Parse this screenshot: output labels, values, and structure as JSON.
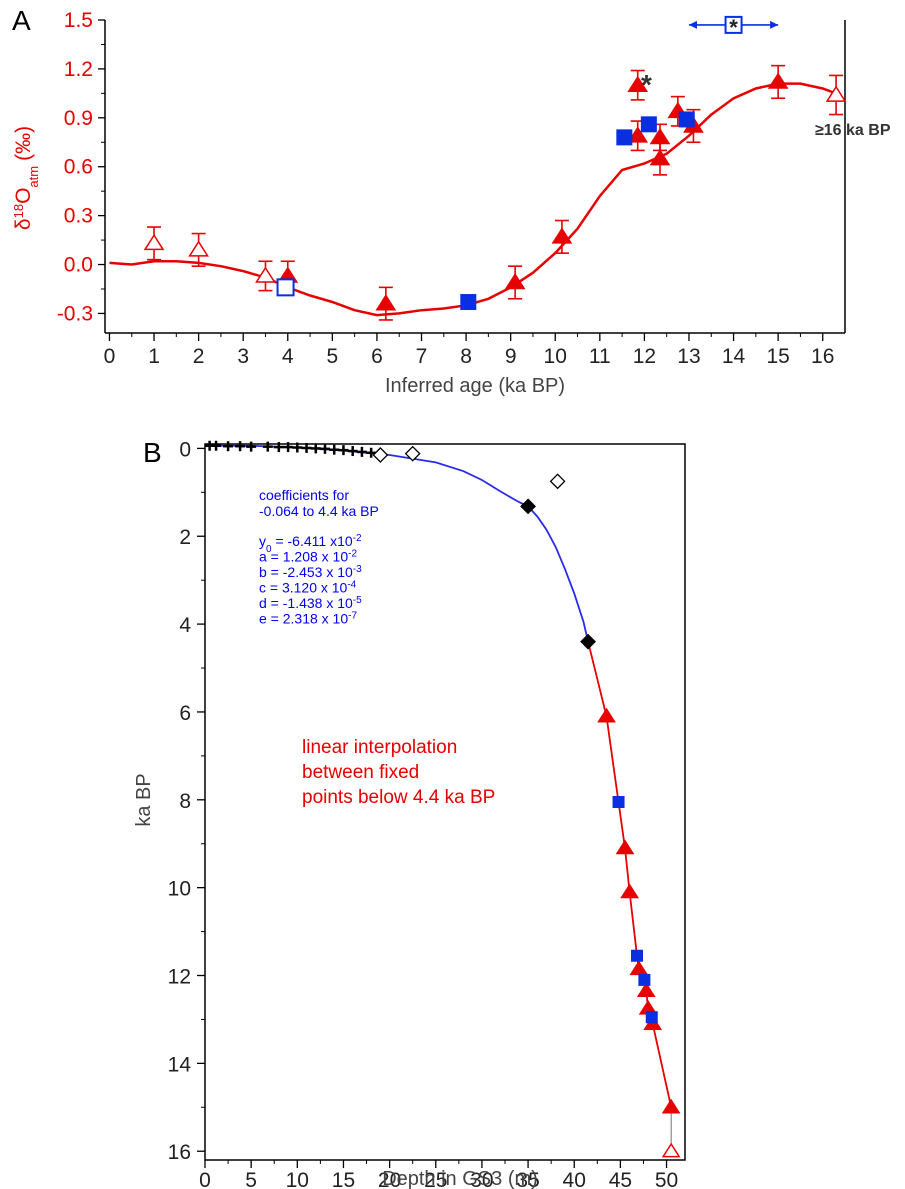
{
  "panel_a": {
    "letter": "A",
    "ylabel_main": "δ",
    "ylabel_sup": "18",
    "ylabel_o": "O",
    "ylabel_sub": "atm",
    "ylabel_unit": "(‰)",
    "asterisk": "*",
    "annotation": "≥16 ka BP"
  },
  "panel_b": {
    "letter": "B",
    "coef_title_1": "coefficients for",
    "coef_title_2": "-0.064 to 4.4 ka BP",
    "coefficients": [
      {
        "pre": "y",
        "sub": "0",
        "mid": " = -6.411 x10",
        "sup": "-2"
      },
      {
        "pre": "a = 1.208 x 10",
        "sub": "",
        "mid": "",
        "sup": "-2"
      },
      {
        "pre": "b = -2.453 x 10",
        "sub": "",
        "mid": "",
        "sup": "-3"
      },
      {
        "pre": "c =  3.120 x 10",
        "sub": "",
        "mid": "",
        "sup": "-4"
      },
      {
        "pre": "d = -1.438 x 10",
        "sub": "",
        "mid": "",
        "sup": "-5"
      },
      {
        "pre": "e =  2.318 x 10",
        "sub": "",
        "mid": "",
        "sup": "-7"
      }
    ],
    "interp_lines": [
      "linear interpolation",
      "between fixed",
      "points below 4.4 ka BP"
    ]
  },
  "colors": {
    "red": "#e60000",
    "blue": "#0a2fe0",
    "fit_blue": "#2a2aee",
    "black": "#000000"
  },
  "chart_data": [
    {
      "type": "scatter",
      "xlabel": "Inferred age (ka BP)",
      "ylabel": "δ18Oatm (‰)",
      "xlim": [
        -0.1,
        16.5
      ],
      "ylim": [
        -0.42,
        1.5
      ],
      "xticks": [
        0,
        1,
        2,
        3,
        4,
        5,
        6,
        7,
        8,
        9,
        10,
        11,
        12,
        13,
        14,
        15,
        16
      ],
      "yticks": [
        -0.3,
        0.0,
        0.3,
        0.6,
        0.9,
        1.2,
        1.5
      ],
      "ytick_labels": [
        "-0.3",
        "0.0",
        "0.3",
        "0.6",
        "0.9",
        "1.2",
        "1.5"
      ],
      "series": [
        {
          "marker": "triangle-filled",
          "points": [
            {
              "x": 4.0,
              "y": -0.07,
              "err": 0.09
            },
            {
              "x": 6.2,
              "y": -0.24,
              "err": 0.1
            },
            {
              "x": 9.1,
              "y": -0.11,
              "err": 0.1
            },
            {
              "x": 10.15,
              "y": 0.17,
              "err": 0.1
            },
            {
              "x": 11.85,
              "y": 0.79,
              "err": 0.09
            },
            {
              "x": 11.85,
              "y": 1.1,
              "err": 0.09
            },
            {
              "x": 12.35,
              "y": 0.78,
              "err": 0.08
            },
            {
              "x": 12.35,
              "y": 0.65,
              "err": 0.1
            },
            {
              "x": 12.75,
              "y": 0.94,
              "err": 0.09
            },
            {
              "x": 13.1,
              "y": 0.85,
              "err": 0.1
            },
            {
              "x": 15.0,
              "y": 1.12,
              "err": 0.1
            }
          ]
        },
        {
          "marker": "triangle-open",
          "points": [
            {
              "x": 1.0,
              "y": 0.13,
              "err": 0.1
            },
            {
              "x": 2.0,
              "y": 0.09,
              "err": 0.1
            },
            {
              "x": 3.5,
              "y": -0.07,
              "err": 0.09
            },
            {
              "x": 16.3,
              "y": 1.04,
              "err": 0.12
            }
          ]
        },
        {
          "marker": "square-filled",
          "points": [
            {
              "x": 8.05,
              "y": -0.23
            },
            {
              "x": 11.55,
              "y": 0.78
            },
            {
              "x": 12.1,
              "y": 0.86
            },
            {
              "x": 12.95,
              "y": 0.89
            }
          ]
        },
        {
          "marker": "square-open",
          "points": [
            {
              "x": 3.95,
              "y": -0.14
            }
          ]
        },
        {
          "marker": "square-open-star",
          "points": [
            {
              "x": 14.0,
              "y": 1.47,
              "xerr": 1.0
            }
          ]
        },
        {
          "marker": "fit-curve",
          "x": [
            0,
            0.5,
            1,
            1.5,
            2,
            2.5,
            3,
            3.5,
            4,
            4.5,
            5,
            5.5,
            6,
            6.5,
            7,
            7.5,
            8,
            8.5,
            9,
            9.5,
            10,
            10.5,
            11,
            11.5,
            12,
            12.5,
            13,
            13.5,
            14,
            14.5,
            15,
            15.5,
            16,
            16.3
          ],
          "y": [
            0.01,
            0.0,
            0.02,
            0.02,
            0.01,
            -0.01,
            -0.04,
            -0.08,
            -0.14,
            -0.19,
            -0.23,
            -0.28,
            -0.31,
            -0.3,
            -0.28,
            -0.27,
            -0.25,
            -0.21,
            -0.14,
            -0.05,
            0.07,
            0.22,
            0.42,
            0.58,
            0.62,
            0.68,
            0.79,
            0.92,
            1.02,
            1.08,
            1.11,
            1.11,
            1.08,
            1.05
          ]
        }
      ]
    },
    {
      "type": "scatter",
      "xlabel": "Depth in GS3 (m)",
      "ylabel": "ka BP",
      "xlim": [
        0,
        52
      ],
      "ylim": [
        16.2,
        -0.1
      ],
      "xticks": [
        0,
        5,
        10,
        15,
        20,
        25,
        30,
        35,
        40,
        45,
        50
      ],
      "yticks": [
        0,
        2,
        4,
        6,
        8,
        10,
        12,
        14,
        16
      ],
      "series": [
        {
          "marker": "plus",
          "points": [
            {
              "x": 0.5,
              "y": -0.06
            },
            {
              "x": 1.2,
              "y": -0.06
            },
            {
              "x": 2.5,
              "y": -0.05
            },
            {
              "x": 3.8,
              "y": -0.05
            },
            {
              "x": 5.0,
              "y": -0.04
            },
            {
              "x": 6.8,
              "y": -0.04
            },
            {
              "x": 8.0,
              "y": -0.03
            },
            {
              "x": 9.0,
              "y": -0.03
            },
            {
              "x": 10.0,
              "y": -0.02
            },
            {
              "x": 11.0,
              "y": -0.01
            },
            {
              "x": 12.0,
              "y": 0.0
            },
            {
              "x": 13.0,
              "y": 0.01
            },
            {
              "x": 14.0,
              "y": 0.03
            },
            {
              "x": 15.0,
              "y": 0.04
            },
            {
              "x": 16.0,
              "y": 0.06
            },
            {
              "x": 17.0,
              "y": 0.08
            },
            {
              "x": 18.0,
              "y": 0.1
            }
          ]
        },
        {
          "marker": "diamond-open",
          "points": [
            {
              "x": 19.0,
              "y": 0.15
            },
            {
              "x": 22.5,
              "y": 0.12
            },
            {
              "x": 38.2,
              "y": 0.75
            }
          ]
        },
        {
          "marker": "diamond-filled",
          "points": [
            {
              "x": 35.0,
              "y": 1.32
            },
            {
              "x": 41.5,
              "y": 4.4
            }
          ]
        },
        {
          "marker": "triangle-filled",
          "points": [
            {
              "x": 43.5,
              "y": 6.1
            },
            {
              "x": 45.5,
              "y": 9.1
            },
            {
              "x": 46.0,
              "y": 10.1
            },
            {
              "x": 47.0,
              "y": 11.85
            },
            {
              "x": 47.8,
              "y": 12.35
            },
            {
              "x": 48.0,
              "y": 12.75
            },
            {
              "x": 48.5,
              "y": 13.1
            },
            {
              "x": 50.5,
              "y": 15.0
            }
          ]
        },
        {
          "marker": "triangle-open",
          "points": [
            {
              "x": 50.5,
              "y": 16.0
            }
          ]
        },
        {
          "marker": "square-filled",
          "points": [
            {
              "x": 44.8,
              "y": 8.05
            },
            {
              "x": 46.8,
              "y": 11.55
            },
            {
              "x": 47.6,
              "y": 12.1
            },
            {
              "x": 48.4,
              "y": 12.95
            }
          ]
        },
        {
          "marker": "fit-curve",
          "x": [
            0,
            5,
            10,
            15,
            20,
            25,
            28,
            30,
            32,
            34,
            35,
            36,
            37,
            38,
            39,
            40,
            41,
            41.5
          ],
          "y": [
            -0.064,
            -0.06,
            -0.02,
            0.05,
            0.15,
            0.32,
            0.52,
            0.72,
            0.98,
            1.22,
            1.32,
            1.55,
            1.85,
            2.25,
            2.75,
            3.3,
            3.95,
            4.4
          ]
        },
        {
          "marker": "interp-line",
          "x": [
            41.5,
            43.5,
            44.8,
            45.5,
            46.0,
            46.8,
            47.0,
            47.6,
            47.8,
            48.0,
            48.4,
            48.5,
            50.5
          ],
          "y": [
            4.4,
            6.1,
            8.05,
            9.1,
            10.1,
            11.55,
            11.85,
            12.1,
            12.35,
            12.75,
            12.95,
            13.1,
            15.0
          ]
        },
        {
          "marker": "gray-segment",
          "x": [
            50.5,
            50.5
          ],
          "y": [
            15.0,
            16.0
          ]
        }
      ]
    }
  ]
}
